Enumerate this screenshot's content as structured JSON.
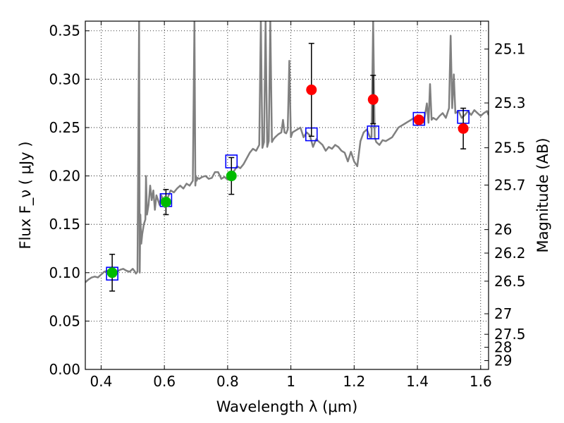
{
  "chart_data": {
    "type": "scatter",
    "xlabel": "Wavelength  λ (μm)",
    "ylabel": "Flux  F_ν  ( μJy )",
    "y2label": "Magnitude (AB)",
    "xlim": [
      0.35,
      1.625
    ],
    "ylim": [
      0.0,
      0.36
    ],
    "grid": true,
    "x_ticks": [
      0.4,
      0.6,
      0.8,
      1.0,
      1.2,
      1.4,
      1.6
    ],
    "x_tick_labels": [
      "0.4",
      "0.6",
      "0.8",
      "1",
      "1.2",
      "1.4",
      "1.6"
    ],
    "y_ticks": [
      0.0,
      0.05,
      0.1,
      0.15,
      0.2,
      0.25,
      0.3,
      0.35
    ],
    "y_tick_labels": [
      "0.00",
      "0.05",
      "0.10",
      "0.15",
      "0.20",
      "0.25",
      "0.30",
      "0.35"
    ],
    "mag_ticks": [
      25.1,
      25.3,
      25.5,
      25.7,
      26,
      26.2,
      26.5,
      27,
      27.5,
      28,
      29
    ],
    "mag_tick_labels": [
      "25.1",
      "25.3",
      "25.5",
      "25.7",
      "26",
      "26.2",
      "26.5",
      "27",
      "27.5",
      "28",
      "29"
    ],
    "series": [
      {
        "kind": "model-spectrum",
        "color": "#808080",
        "x": [
          0.35,
          0.36,
          0.37,
          0.38,
          0.39,
          0.4,
          0.41,
          0.42,
          0.43,
          0.44,
          0.45,
          0.46,
          0.47,
          0.48,
          0.49,
          0.5,
          0.505,
          0.51,
          0.515,
          0.52,
          0.522,
          0.524,
          0.527,
          0.53,
          0.535,
          0.54,
          0.542,
          0.545,
          0.55,
          0.555,
          0.56,
          0.565,
          0.57,
          0.575,
          0.58,
          0.585,
          0.59,
          0.6,
          0.61,
          0.62,
          0.63,
          0.64,
          0.65,
          0.66,
          0.67,
          0.68,
          0.69,
          0.695,
          0.698,
          0.7,
          0.702,
          0.705,
          0.71,
          0.72,
          0.73,
          0.74,
          0.75,
          0.76,
          0.77,
          0.78,
          0.79,
          0.8,
          0.81,
          0.82,
          0.83,
          0.84,
          0.85,
          0.86,
          0.87,
          0.88,
          0.89,
          0.9,
          0.905,
          0.91,
          0.915,
          0.92,
          0.925,
          0.93,
          0.935,
          0.94,
          0.945,
          0.95,
          0.96,
          0.97,
          0.975,
          0.98,
          0.985,
          0.99,
          0.995,
          1.0,
          1.005,
          1.01,
          1.02,
          1.03,
          1.04,
          1.05,
          1.06,
          1.07,
          1.08,
          1.09,
          1.1,
          1.11,
          1.12,
          1.13,
          1.14,
          1.15,
          1.16,
          1.17,
          1.18,
          1.19,
          1.2,
          1.21,
          1.22,
          1.23,
          1.24,
          1.25,
          1.255,
          1.26,
          1.265,
          1.27,
          1.28,
          1.29,
          1.3,
          1.31,
          1.32,
          1.33,
          1.34,
          1.35,
          1.36,
          1.37,
          1.38,
          1.39,
          1.4,
          1.41,
          1.42,
          1.43,
          1.435,
          1.44,
          1.445,
          1.45,
          1.46,
          1.47,
          1.48,
          1.49,
          1.5,
          1.505,
          1.51,
          1.515,
          1.52,
          1.53,
          1.54,
          1.55,
          1.56,
          1.57,
          1.58,
          1.59,
          1.6,
          1.61,
          1.62,
          1.625
        ],
        "y": [
          0.09,
          0.093,
          0.095,
          0.096,
          0.095,
          0.098,
          0.101,
          0.102,
          0.1,
          0.099,
          0.101,
          0.103,
          0.104,
          0.102,
          0.101,
          0.104,
          0.102,
          0.099,
          0.101,
          0.36,
          0.1,
          0.16,
          0.13,
          0.14,
          0.15,
          0.155,
          0.2,
          0.16,
          0.17,
          0.19,
          0.175,
          0.185,
          0.165,
          0.18,
          0.175,
          0.17,
          0.18,
          0.173,
          0.177,
          0.185,
          0.183,
          0.187,
          0.19,
          0.187,
          0.192,
          0.19,
          0.195,
          0.36,
          0.19,
          0.2,
          0.195,
          0.198,
          0.197,
          0.199,
          0.2,
          0.197,
          0.198,
          0.204,
          0.204,
          0.197,
          0.199,
          0.196,
          0.2,
          0.205,
          0.21,
          0.208,
          0.212,
          0.218,
          0.224,
          0.228,
          0.226,
          0.232,
          0.36,
          0.229,
          0.235,
          0.36,
          0.23,
          0.236,
          0.36,
          0.235,
          0.238,
          0.24,
          0.243,
          0.245,
          0.258,
          0.245,
          0.244,
          0.248,
          0.319,
          0.24,
          0.245,
          0.246,
          0.248,
          0.25,
          0.24,
          0.245,
          0.242,
          0.23,
          0.238,
          0.235,
          0.232,
          0.226,
          0.23,
          0.228,
          0.232,
          0.23,
          0.226,
          0.224,
          0.215,
          0.225,
          0.215,
          0.21,
          0.236,
          0.245,
          0.248,
          0.24,
          0.24,
          0.36,
          0.24,
          0.235,
          0.232,
          0.237,
          0.236,
          0.238,
          0.24,
          0.245,
          0.25,
          0.252,
          0.254,
          0.256,
          0.258,
          0.26,
          0.262,
          0.258,
          0.255,
          0.275,
          0.255,
          0.295,
          0.258,
          0.26,
          0.258,
          0.262,
          0.265,
          0.26,
          0.27,
          0.345,
          0.27,
          0.305,
          0.265,
          0.267,
          0.26,
          0.263,
          0.267,
          0.263,
          0.268,
          0.265,
          0.262,
          0.265,
          0.267,
          0.263
        ]
      },
      {
        "kind": "model-photometry",
        "marker": "open-square",
        "color": "#0000ff",
        "x": [
          0.435,
          0.605,
          0.812,
          1.065,
          1.26,
          1.405,
          1.545
        ],
        "y": [
          0.099,
          0.175,
          0.215,
          0.243,
          0.245,
          0.259,
          0.261
        ]
      },
      {
        "kind": "observed",
        "marker": "filled-circle",
        "color": "#00bb00",
        "x": [
          0.435,
          0.605,
          0.812
        ],
        "y": [
          0.1,
          0.173,
          0.2
        ],
        "yerr": [
          0.019,
          0.013,
          0.019
        ]
      },
      {
        "kind": "observed",
        "marker": "filled-circle",
        "color": "#ff0000",
        "x": [
          1.065,
          1.26,
          1.405,
          1.545
        ],
        "y": [
          0.289,
          0.279,
          0.258,
          0.249
        ],
        "yerr": [
          0.048,
          0.025,
          0.0,
          0.021
        ]
      }
    ]
  }
}
